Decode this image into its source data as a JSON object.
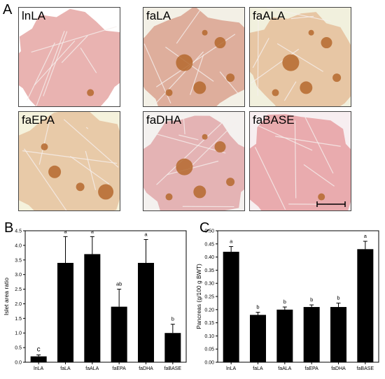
{
  "panel_letters": {
    "a": "A",
    "b": "B",
    "c": "C"
  },
  "micrographs": [
    {
      "label": "lnLA",
      "tissue": "#e9b3b1",
      "bg": "#ffffff",
      "islet_density": "low"
    },
    {
      "label": "faLA",
      "tissue": "#deae9c",
      "bg": "#f3f0e6",
      "islet_density": "high"
    },
    {
      "label": "faALA",
      "tissue": "#e7c6a4",
      "bg": "#f1f0dd",
      "islet_density": "high"
    },
    {
      "label": "faEPA",
      "tissue": "#e8caa8",
      "bg": "#f5f2dc",
      "islet_density": "medium"
    },
    {
      "label": "faDHA",
      "tissue": "#e4b3b4",
      "bg": "#f4f1ef",
      "islet_density": "high"
    },
    {
      "label": "faBASE",
      "tissue": "#e9abae",
      "bg": "#f7eef0",
      "islet_density": "low"
    }
  ],
  "islet_color": "#b5682e",
  "chart_data": [
    {
      "type": "bar",
      "panel": "B",
      "categories": [
        "lnLA",
        "faLA",
        "faALA",
        "faEPA",
        "faDHA",
        "faBASE"
      ],
      "values": [
        0.2,
        3.4,
        3.7,
        1.9,
        3.4,
        1.0
      ],
      "error": [
        0.05,
        0.9,
        0.6,
        0.6,
        0.8,
        0.3
      ],
      "sig_labels": [
        "c",
        "a",
        "a",
        "ab",
        "a",
        "b"
      ],
      "ylabel": "Islet area ratio",
      "ylim": [
        0,
        4.5
      ],
      "yticks": [
        0,
        0.5,
        1.0,
        1.5,
        2.0,
        2.5,
        3.0,
        3.5,
        4.0,
        4.5
      ],
      "ytick_labels": [
        "0.0",
        "0.5",
        "1.0",
        "1.5",
        "2.0",
        "2.5",
        "3.0",
        "3.5",
        "4.0",
        "4.5"
      ],
      "bar_color": "#000000"
    },
    {
      "type": "bar",
      "panel": "C",
      "categories": [
        "lnLA",
        "faLA",
        "faALA",
        "faEPA",
        "faDHA",
        "faBASE"
      ],
      "values": [
        0.42,
        0.18,
        0.2,
        0.21,
        0.21,
        0.43
      ],
      "error": [
        0.02,
        0.01,
        0.01,
        0.008,
        0.015,
        0.03
      ],
      "sig_labels": [
        "a",
        "b",
        "b",
        "b",
        "b",
        "a"
      ],
      "ylabel": "Pancreas (g/100 g BWT)",
      "ylim": [
        0,
        0.5
      ],
      "yticks": [
        0,
        0.05,
        0.1,
        0.15,
        0.2,
        0.25,
        0.3,
        0.35,
        0.4,
        0.45,
        0.5
      ],
      "ytick_labels": [
        "0.00",
        "0.05",
        "0.10",
        "0.15",
        "0.20",
        "0.25",
        "0.30",
        "0.35",
        "0.40",
        "0.45",
        "0.50"
      ],
      "bar_color": "#000000"
    }
  ]
}
